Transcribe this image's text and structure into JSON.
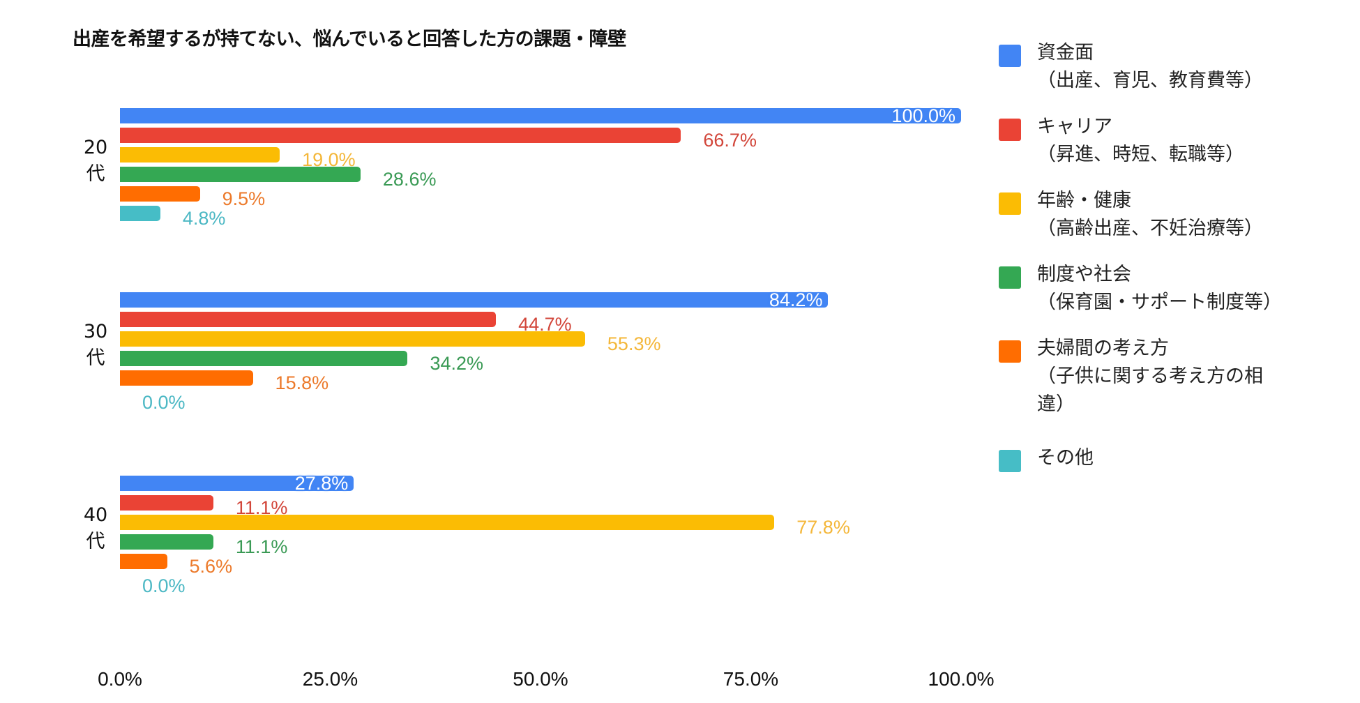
{
  "chart_data": {
    "type": "bar",
    "orientation": "horizontal",
    "title": "出産を希望するが持てない、悩んでいると回答した方の課題・障壁",
    "categories": [
      "20代",
      "30代",
      "40代"
    ],
    "series": [
      {
        "name": "資金面（出産、育児、教育費等）",
        "color": "#4285f4",
        "values": [
          100.0,
          84.2,
          27.8
        ],
        "labels": [
          "100.0%",
          "84.2%",
          "27.8%"
        ]
      },
      {
        "name": "キャリア（昇進、時短、転職等）",
        "color": "#ea4335",
        "values": [
          66.7,
          44.7,
          11.1
        ],
        "labels": [
          "66.7%",
          "44.7%",
          "11.1%"
        ]
      },
      {
        "name": "年齢・健康（高齢出産、不妊治療等）",
        "color": "#fbbc04",
        "values": [
          19.0,
          55.3,
          77.8
        ],
        "labels": [
          "19.0%",
          "55.3%",
          "77.8%"
        ]
      },
      {
        "name": "制度や社会（保育園・サポート制度等）",
        "color": "#34a853",
        "values": [
          28.6,
          34.2,
          11.1
        ],
        "labels": [
          "28.6%",
          "34.2%",
          "11.1%"
        ]
      },
      {
        "name": "夫婦間の考え方（子供に関する考え方の相違）",
        "color": "#ff6d01",
        "values": [
          9.5,
          15.8,
          5.6
        ],
        "labels": [
          "9.5%",
          "15.8%",
          "5.6%"
        ]
      },
      {
        "name": "その他",
        "color": "#46bdc6",
        "values": [
          4.8,
          0.0,
          0.0
        ],
        "labels": [
          "4.8%",
          "0.0%",
          "0.0%"
        ]
      }
    ],
    "xlabel": "",
    "ylabel": "",
    "xlim": [
      0,
      100
    ],
    "xticks": [
      "0.0%",
      "25.0%",
      "50.0%",
      "75.0%",
      "100.0%"
    ],
    "grid": false,
    "legend_position": "right"
  },
  "title": "出産を希望するが持てない、悩んでいると回答した方の課題・障壁",
  "groups": [
    {
      "label_line1": "20",
      "label_line2": "代"
    },
    {
      "label_line1": "30",
      "label_line2": "代"
    },
    {
      "label_line1": "40",
      "label_line2": "代"
    }
  ],
  "xticks": [
    "0.0%",
    "25.0%",
    "50.0%",
    "75.0%",
    "100.0%"
  ],
  "legend": [
    {
      "label": "資金面\n（出産、育児、教育費等）",
      "color": "#4285f4"
    },
    {
      "label": "キャリア\n（昇進、時短、転職等）",
      "color": "#ea4335"
    },
    {
      "label": "年齢・健康\n（高齢出産、不妊治療等）",
      "color": "#fbbc04"
    },
    {
      "label": "制度や社会\n（保育園・サポート制度等）",
      "color": "#34a853"
    },
    {
      "label": "夫婦間の考え方\n（子供に関する考え方の相\n違）",
      "color": "#ff6d01"
    },
    {
      "label": "その他",
      "color": "#46bdc6"
    }
  ],
  "label_colors": [
    "#ffffff",
    "#d2463a",
    "#f4b73a",
    "#3a9a55",
    "#ec7a2b",
    "#4cb8c4"
  ]
}
